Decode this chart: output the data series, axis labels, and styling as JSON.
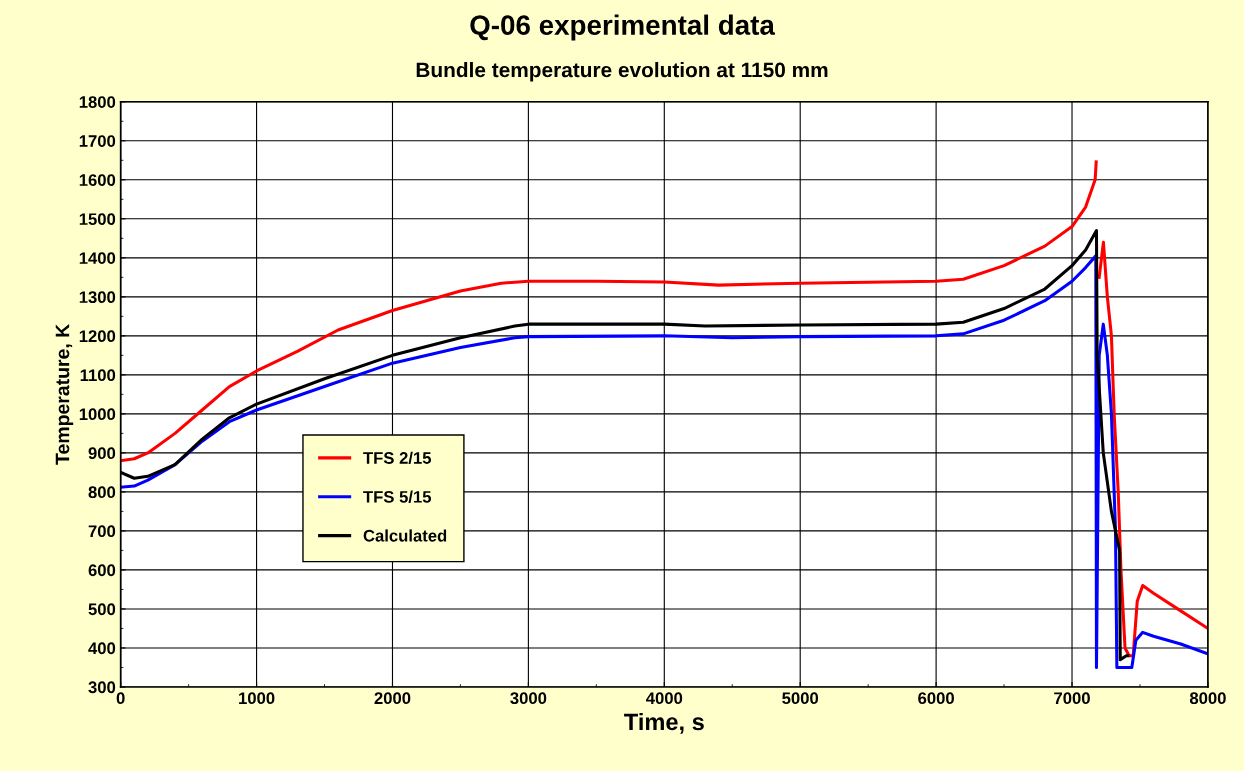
{
  "chart_data": {
    "type": "line",
    "title": "Q-06 experimental data",
    "subtitle": "Bundle temperature evolution at 1150 mm",
    "xlabel": "Time, s",
    "ylabel": "Temperature, K",
    "xlim": [
      0,
      8000
    ],
    "ylim": [
      300,
      1800
    ],
    "xticks": [
      0,
      {
        "value": 500,
        "label": null
      },
      1000,
      {
        "value": 1500,
        "label": null
      },
      2000,
      {
        "value": 2500,
        "label": null
      },
      3000,
      {
        "value": 3500,
        "label": null
      },
      4000,
      {
        "value": 4500,
        "label": null
      },
      5000,
      {
        "value": 5500,
        "label": null
      },
      6000,
      {
        "value": 6500,
        "label": null
      },
      7000,
      {
        "value": 7500,
        "label": null
      },
      8000
    ],
    "yticks": [
      300,
      {
        "value": 350,
        "label": null
      },
      400,
      {
        "value": 450,
        "label": null
      },
      500,
      {
        "value": 550,
        "label": null
      },
      600,
      {
        "value": 650,
        "label": null
      },
      700,
      {
        "value": 750,
        "label": null
      },
      800,
      {
        "value": 850,
        "label": null
      },
      900,
      {
        "value": 950,
        "label": null
      },
      1000,
      {
        "value": 1050,
        "label": null
      },
      1100,
      {
        "value": 1150,
        "label": null
      },
      1200,
      {
        "value": 1250,
        "label": null
      },
      1300,
      {
        "value": 1350,
        "label": null
      },
      1400,
      {
        "value": 1450,
        "label": null
      },
      1500,
      {
        "value": 1550,
        "label": null
      },
      1600,
      {
        "value": 1650,
        "label": null
      },
      1700,
      {
        "value": 1750,
        "label": null
      },
      1800
    ],
    "grid": true,
    "legend": "bottom left",
    "marker": "none",
    "line_style": "solid",
    "series": [
      {
        "name": "TFS 2/15",
        "color": "#ff0000",
        "x": [
          0,
          100,
          200,
          400,
          600,
          800,
          1000,
          1300,
          1600,
          2000,
          2500,
          2800,
          3000,
          3500,
          4000,
          4400,
          5000,
          6000,
          6200,
          6500,
          6800,
          7000,
          7100,
          7170,
          7178,
          7182,
          7200,
          7231,
          7260,
          7290,
          7310,
          7340,
          7360,
          7390,
          7420,
          7450,
          7480,
          7520,
          7600,
          7800,
          8000
        ],
        "values": [
          880,
          885,
          900,
          950,
          1010,
          1070,
          1110,
          1160,
          1215,
          1265,
          1315,
          1335,
          1340,
          1340,
          1338,
          1330,
          1335,
          1340,
          1345,
          1380,
          1430,
          1480,
          1530,
          1600,
          1646,
          null,
          1350,
          1440,
          1300,
          1200,
          1000,
          800,
          600,
          400,
          380,
          380,
          520,
          560,
          540,
          495,
          450
        ]
      },
      {
        "name": "TFS 5/15",
        "color": "#0000ff",
        "x": [
          0,
          100,
          200,
          400,
          600,
          800,
          1000,
          1500,
          2000,
          2500,
          2900,
          3000,
          4000,
          4500,
          5000,
          6000,
          6200,
          6500,
          6800,
          7000,
          7100,
          7175,
          7180,
          7200,
          7230,
          7260,
          7290,
          7320,
          7330,
          7400,
          7440,
          7470,
          7520,
          7600,
          7800,
          8000
        ],
        "values": [
          812,
          815,
          830,
          870,
          930,
          980,
          1010,
          1070,
          1130,
          1170,
          1195,
          1198,
          1200,
          1195,
          1198,
          1200,
          1205,
          1240,
          1290,
          1340,
          1375,
          1405,
          350,
          1150,
          1230,
          1150,
          1000,
          700,
          350,
          350,
          350,
          420,
          440,
          430,
          410,
          385
        ]
      },
      {
        "name": "Calculated",
        "color": "#000000",
        "x": [
          0,
          100,
          200,
          400,
          600,
          800,
          1000,
          1500,
          2000,
          2500,
          2900,
          3000,
          4000,
          4300,
          5000,
          6000,
          6200,
          6500,
          6800,
          7000,
          7100,
          7180,
          7185,
          7230,
          7290,
          7350,
          7355,
          7400,
          7410
        ],
        "values": [
          850,
          835,
          840,
          870,
          935,
          990,
          1025,
          1090,
          1150,
          1195,
          1225,
          1230,
          1230,
          1225,
          1228,
          1230,
          1235,
          1270,
          1320,
          1380,
          1420,
          1470,
          1150,
          900,
          750,
          650,
          370,
          380,
          380
        ]
      }
    ]
  }
}
